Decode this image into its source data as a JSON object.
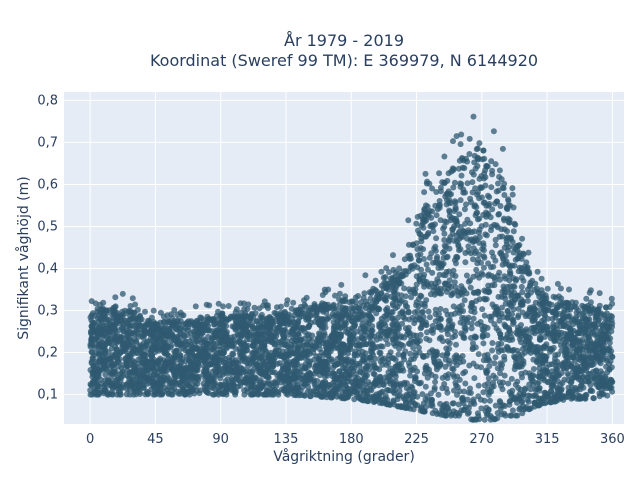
{
  "chart_data": {
    "type": "scatter",
    "title": "År 1979 - 2019",
    "subtitle": "Koordinat (Sweref 99 TM): E 369979, N 6144920",
    "xlabel": "Vågriktning (grader)",
    "ylabel": "Signifikant våghöjd (m)",
    "xlim": [
      -18,
      368
    ],
    "ylim": [
      0.03,
      0.82
    ],
    "xticks": [
      0,
      45,
      90,
      135,
      180,
      225,
      270,
      315,
      360
    ],
    "xtick_labels": [
      "0",
      "45",
      "90",
      "135",
      "180",
      "225",
      "270",
      "315",
      "360"
    ],
    "yticks": [
      0.1,
      0.2,
      0.3,
      0.4,
      0.5,
      0.6,
      0.7,
      0.8
    ],
    "ytick_labels": [
      "0,1",
      "0,2",
      "0,3",
      "0,4",
      "0,5",
      "0,6",
      "0,7",
      "0,8"
    ],
    "grid": true,
    "marker_color": "#2f5970",
    "plot_background": "#e5ecf6",
    "envelope": {
      "direction": [
        0,
        10,
        20,
        45,
        90,
        135,
        180,
        200,
        215,
        230,
        245,
        255,
        262,
        268,
        272,
        278,
        285,
        295,
        305,
        315,
        330,
        345,
        360
      ],
      "lower": [
        0.1,
        0.1,
        0.1,
        0.1,
        0.1,
        0.1,
        0.09,
        0.08,
        0.07,
        0.06,
        0.05,
        0.05,
        0.04,
        0.04,
        0.04,
        0.04,
        0.05,
        0.05,
        0.07,
        0.08,
        0.09,
        0.09,
        0.1
      ],
      "upper": [
        0.33,
        0.34,
        0.35,
        0.3,
        0.32,
        0.33,
        0.37,
        0.4,
        0.48,
        0.62,
        0.72,
        0.76,
        0.79,
        0.8,
        0.79,
        0.76,
        0.7,
        0.55,
        0.42,
        0.38,
        0.36,
        0.35,
        0.33
      ]
    }
  }
}
